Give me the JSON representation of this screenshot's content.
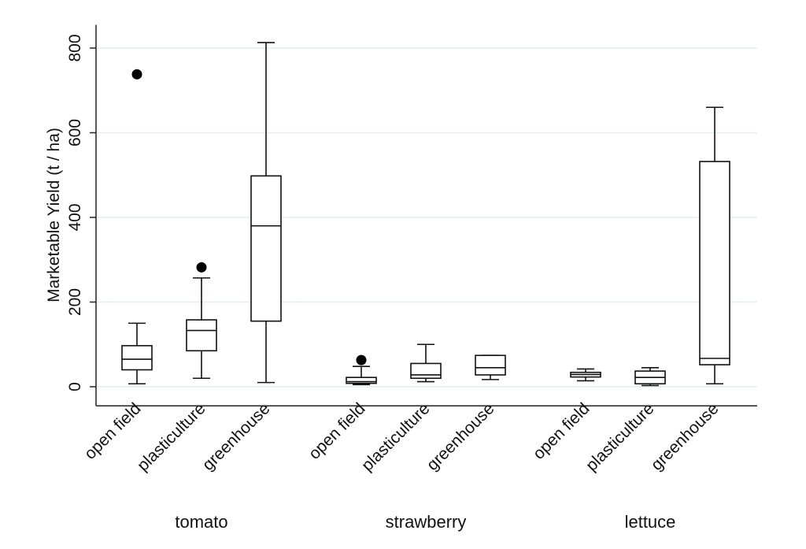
{
  "chart_data": {
    "type": "box",
    "ylabel": "Marketable Yield (t / ha)",
    "xlabel": "",
    "ylim": [
      -45,
      855
    ],
    "yticks": [
      0,
      200,
      400,
      600,
      800
    ],
    "grid": true,
    "groups": [
      {
        "label": "tomato",
        "boxes": [
          {
            "label": "open field",
            "whisker_low": 7,
            "q1": 40,
            "median": 65,
            "q3": 97,
            "whisker_high": 150,
            "outliers": [
              738
            ]
          },
          {
            "label": "plasticulture",
            "whisker_low": 20,
            "q1": 85,
            "median": 133,
            "q3": 158,
            "whisker_high": 257,
            "outliers": [
              282
            ]
          },
          {
            "label": "greenhouse",
            "whisker_low": 10,
            "q1": 155,
            "median": 380,
            "q3": 498,
            "whisker_high": 813,
            "outliers": []
          }
        ]
      },
      {
        "label": "strawberry",
        "boxes": [
          {
            "label": "open field",
            "whisker_low": 5,
            "q1": 8,
            "median": 12,
            "q3": 22,
            "whisker_high": 48,
            "outliers": [
              63
            ]
          },
          {
            "label": "plasticulture",
            "whisker_low": 12,
            "q1": 20,
            "median": 28,
            "q3": 55,
            "whisker_high": 100,
            "outliers": []
          },
          {
            "label": "greenhouse",
            "whisker_low": 17,
            "q1": 28,
            "median": 45,
            "q3": 74,
            "whisker_high": 74,
            "outliers": []
          }
        ]
      },
      {
        "label": "lettuce",
        "boxes": [
          {
            "label": "open field",
            "whisker_low": 14,
            "q1": 23,
            "median": 29,
            "q3": 34,
            "whisker_high": 42,
            "outliers": []
          },
          {
            "label": "plasticulture",
            "whisker_low": 3,
            "q1": 7,
            "median": 22,
            "q3": 37,
            "whisker_high": 45,
            "outliers": []
          },
          {
            "label": "greenhouse",
            "whisker_low": 7,
            "q1": 52,
            "median": 67,
            "q3": 532,
            "whisker_high": 660,
            "outliers": []
          }
        ]
      }
    ]
  }
}
